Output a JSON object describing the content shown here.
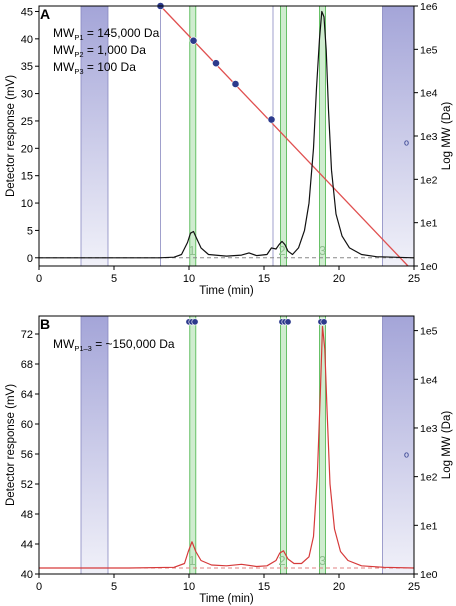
{
  "figure": {
    "colors": {
      "axis": "#000000",
      "trace_a": "#111111",
      "trace_b": "#d63a3a",
      "cal_line": "#e05050",
      "point": "#2d3a8c",
      "green_band": "#bfe6bf",
      "green_line": "#67c167",
      "purple_band": "#9fa0d6",
      "purple_line": "#8888c0",
      "baseline": "#888888",
      "peak_label": "#8fbf8f"
    }
  },
  "chart_data": [
    {
      "type": "line",
      "panel_label": "A",
      "xlabel": "Time (min)",
      "ylabel": "Detector response (mV)",
      "ylabel_right": "Log MW (Da)",
      "xlim": [
        0,
        25
      ],
      "ylim": [
        -1.5,
        46
      ],
      "y2_log_range": [
        0,
        6
      ],
      "x_ticks": [
        0,
        5,
        10,
        15,
        20,
        25
      ],
      "x_tick_labels": [
        "0",
        "5",
        "10",
        "15",
        "20",
        "25"
      ],
      "y_ticks": [
        0,
        5,
        10,
        15,
        20,
        25,
        30,
        35,
        40,
        45
      ],
      "y_tick_labels": [
        "0",
        "5",
        "10",
        "15",
        "20",
        "25",
        "30",
        "35",
        "40",
        "45"
      ],
      "y2_ticks": [
        0,
        1,
        2,
        3,
        4,
        5,
        6
      ],
      "y2_tick_labels": [
        "1e0",
        "1e1",
        "1e2",
        "1e3",
        "1e4",
        "1e5",
        "1e6"
      ],
      "annotations": [
        {
          "sym": "MW",
          "sub": "P1",
          "val": " = 145,000 Da"
        },
        {
          "sym": "MW",
          "sub": "P2",
          "val": " = 1,000 Da"
        },
        {
          "sym": "MW",
          "sub": "P3",
          "val": " = 100 Da"
        }
      ],
      "peak_labels": [
        {
          "x": 10.2,
          "text": "1"
        },
        {
          "x": 16.2,
          "text": "2"
        },
        {
          "x": 18.9,
          "text": "3"
        }
      ],
      "purple_bands": [
        [
          2.8,
          4.6
        ],
        [
          22.9,
          25.0
        ]
      ],
      "green_bands": [
        [
          10.05,
          10.45
        ],
        [
          16.1,
          16.5
        ],
        [
          18.7,
          19.1
        ]
      ],
      "thin_lines": [
        8.1,
        15.6
      ],
      "baseline": 0,
      "calibration_line": {
        "x": [
          8.1,
          24.6
        ],
        "log_mw": [
          6.0,
          0.0
        ]
      },
      "calibration_points": {
        "x": [
          8.1,
          10.3,
          11.8,
          13.1,
          15.5
        ],
        "log_mw": [
          6.0,
          5.2,
          4.68,
          4.2,
          3.38
        ]
      },
      "side_markers": [
        {
          "x": 24.5,
          "log_mw": 2.85,
          "text": "o"
        }
      ],
      "series": [
        {
          "x": [
            0,
            5,
            8,
            9,
            9.5,
            9.9,
            10.1,
            10.3,
            10.5,
            10.8,
            11.3,
            12.5,
            13.5,
            14,
            14.5,
            15.2,
            15.5,
            15.8,
            16.0,
            16.2,
            16.4,
            16.6,
            16.9,
            17.3,
            17.7,
            18.0,
            18.3,
            18.5,
            18.7,
            18.85,
            19.0,
            19.15,
            19.3,
            19.5,
            19.8,
            20.2,
            20.7,
            21.5,
            22.5,
            25
          ],
          "values": [
            0,
            0,
            0,
            0.1,
            0.6,
            2.8,
            4.5,
            4.8,
            3.6,
            1.8,
            0.6,
            0.3,
            0.5,
            0.9,
            0.4,
            0.6,
            1.8,
            1.6,
            2.4,
            3.0,
            2.4,
            1.2,
            0.6,
            1.8,
            5.0,
            10.0,
            20.0,
            31.0,
            40.0,
            45.0,
            44.0,
            38.0,
            27.0,
            16.0,
            8.0,
            4.0,
            1.8,
            0.6,
            0.2,
            0
          ]
        }
      ]
    },
    {
      "type": "line",
      "panel_label": "B",
      "xlabel": "Time (min)",
      "ylabel": "Detector response (mV)",
      "ylabel_right": "Log MW (Da)",
      "xlim": [
        0,
        25
      ],
      "ylim": [
        40,
        74.4
      ],
      "y2_log_range": [
        0,
        5.3
      ],
      "x_ticks": [
        0,
        5,
        10,
        15,
        20,
        25
      ],
      "x_tick_labels": [
        "0",
        "5",
        "10",
        "15",
        "20",
        "25"
      ],
      "y_ticks": [
        40,
        44,
        48,
        52,
        56,
        60,
        64,
        68,
        72
      ],
      "y_tick_labels": [
        "40",
        "44",
        "48",
        "52",
        "56",
        "60",
        "64",
        "68",
        "72"
      ],
      "y2_ticks": [
        0,
        1,
        2,
        3,
        4,
        5
      ],
      "y2_tick_labels": [
        "1e0",
        "1e1",
        "1e2",
        "1e3",
        "1e4",
        "1e5"
      ],
      "annotations": [
        {
          "sym": "MW",
          "sub": "P1–3",
          "val": " = ~150,000 Da"
        }
      ],
      "peak_labels": [
        {
          "x": 10.2,
          "text": "1"
        },
        {
          "x": 16.2,
          "text": "2"
        },
        {
          "x": 18.9,
          "text": "3"
        }
      ],
      "purple_bands": [
        [
          2.8,
          4.6
        ],
        [
          22.9,
          25.0
        ]
      ],
      "green_bands": [
        [
          10.05,
          10.45
        ],
        [
          16.1,
          16.5
        ],
        [
          18.7,
          19.1
        ]
      ],
      "thin_lines": [],
      "baseline": 40.8,
      "calibration_points": {
        "x": [
          10.0,
          10.2,
          10.4,
          16.2,
          16.4,
          16.6,
          18.8,
          19.0
        ],
        "log_mw": [
          5.18,
          5.18,
          5.18,
          5.18,
          5.18,
          5.18,
          5.18,
          5.18
        ]
      },
      "side_markers": [
        {
          "x": 24.5,
          "log_mw": 2.45,
          "text": "o"
        }
      ],
      "series": [
        {
          "x": [
            0,
            3,
            6,
            9,
            9.7,
            9.95,
            10.2,
            10.45,
            10.8,
            11.5,
            12.5,
            13.5,
            14.5,
            15.2,
            15.8,
            16.05,
            16.3,
            16.6,
            17.0,
            17.5,
            18.0,
            18.3,
            18.55,
            18.75,
            18.9,
            19.05,
            19.2,
            19.4,
            19.7,
            20.1,
            20.6,
            21.5,
            23,
            25
          ],
          "values": [
            40.8,
            40.8,
            40.8,
            40.9,
            41.4,
            43.0,
            44.3,
            43.0,
            41.8,
            41.2,
            41.1,
            41.3,
            41.0,
            41.1,
            41.8,
            42.8,
            43.1,
            42.0,
            41.4,
            41.4,
            42.3,
            45.0,
            53.0,
            64.0,
            73.0,
            70.0,
            62.0,
            52.0,
            46.0,
            43.0,
            41.8,
            41.1,
            40.9,
            40.8
          ]
        }
      ]
    }
  ]
}
